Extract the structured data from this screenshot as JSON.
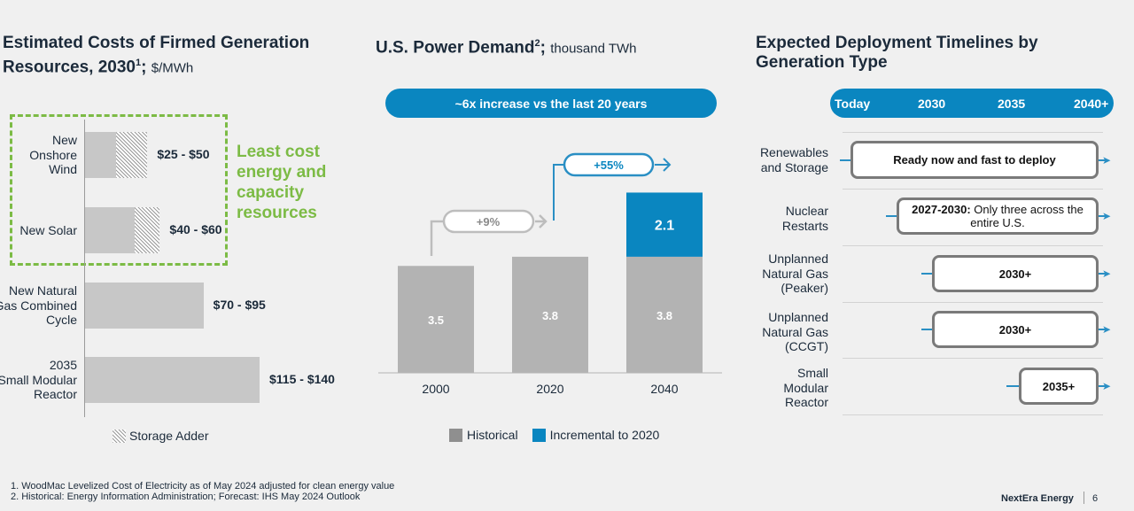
{
  "left": {
    "title_line1": "Estimated Costs of Firmed Generation",
    "title_line2": "Resources, 2030",
    "title_sup": "1",
    "title_semicolon": ";",
    "unit": "$/MWh",
    "highlight_text": [
      "Least cost",
      "energy and",
      "capacity",
      "resources"
    ],
    "legend": "Storage Adder",
    "colors": {
      "bar": "#c7c7c7",
      "highlight": "#7cbb45"
    }
  },
  "middle": {
    "title": "U.S. Power Demand",
    "title_sup": "2",
    "title_semicolon": ";",
    "unit": "thousand TWh",
    "banner": "~6x increase vs the last 20 years",
    "growth_labels": [
      "+9%",
      "+55%"
    ],
    "legend": [
      "Historical",
      "Incremental to 2020"
    ],
    "colors": {
      "historical": "#b3b3b3",
      "incremental": "#0a86c0"
    }
  },
  "right": {
    "title_line1": "Expected Deployment Timelines by",
    "title_line2": "Generation Type",
    "timeline_header": [
      "Today",
      "2030",
      "2035",
      "2040+"
    ],
    "rows": [
      {
        "label": [
          "Renewables",
          "and Storage"
        ],
        "bold": "Ready now and fast to deploy",
        "rest": ""
      },
      {
        "label": [
          "Nuclear",
          "Restarts"
        ],
        "bold": "2027-2030:",
        "rest": " Only three across the entire U.S."
      },
      {
        "label": [
          "Unplanned",
          "Natural Gas",
          "(Peaker)"
        ],
        "bold": "2030+",
        "rest": ""
      },
      {
        "label": [
          "Unplanned",
          "Natural Gas",
          "(CCGT)"
        ],
        "bold": "2030+",
        "rest": ""
      },
      {
        "label": [
          "Small",
          "Modular",
          "Reactor"
        ],
        "bold": "2035+",
        "rest": ""
      }
    ],
    "colors": {
      "header": "#0a86c0"
    }
  },
  "chart_data": [
    {
      "type": "bar",
      "orientation": "horizontal",
      "categories": [
        "New Onshore Wind",
        "New Solar",
        "New Natural Gas Combined Cycle",
        "2035 Small Modular Reactor"
      ],
      "values": [
        [
          25,
          50
        ],
        [
          40,
          60
        ],
        [
          70,
          95
        ],
        [
          115,
          140
        ]
      ],
      "value_labels": [
        "$25 - $50",
        "$40 - $60",
        "$70 - $95",
        "$115 - $140"
      ],
      "storage_adder": [
        true,
        true,
        false,
        false
      ],
      "xlim": [
        0,
        140
      ]
    },
    {
      "type": "bar",
      "stacked": true,
      "categories": [
        "2000",
        "2020",
        "2040"
      ],
      "series": [
        {
          "name": "Historical",
          "values": [
            3.5,
            3.8,
            3.8
          ]
        },
        {
          "name": "Incremental to 2020",
          "values": [
            0,
            0,
            2.1
          ]
        }
      ],
      "ylim": [
        0,
        6.2
      ]
    }
  ],
  "footer": {
    "notes": [
      "1.  WoodMac Levelized Cost of Electricity as of May 2024 adjusted for clean energy value",
      "2.  Historical: Energy Information Administration; Forecast: IHS May 2024 Outlook"
    ],
    "brand": "NextEra Energy",
    "page": "6"
  }
}
